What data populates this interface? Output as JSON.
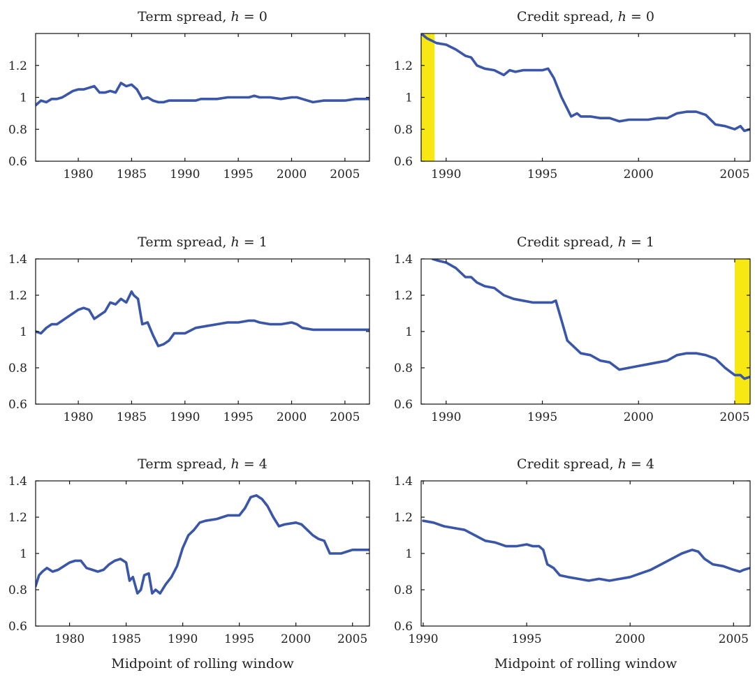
{
  "figure": {
    "line_color": "#3a56a8",
    "highlight_color": "#f7e712",
    "axis_color": "#111111"
  },
  "chart_data": [
    {
      "type": "line",
      "title": "Term spread, h = 0",
      "title_main": "Term spread, ",
      "title_var": "h",
      "title_eq": " = 0",
      "xlabel": "",
      "ylabel": "",
      "xlim": [
        1976,
        2007.3
      ],
      "ylim": [
        0.6,
        1.4
      ],
      "xticks": [
        1980,
        1985,
        1990,
        1995,
        2000,
        2005
      ],
      "yticks": [
        0.6,
        0.8,
        1,
        1.2
      ],
      "ytick_labels": [
        "0.6",
        "0.8",
        "1",
        "1.2"
      ],
      "grid": false,
      "highlight": null,
      "series": [
        {
          "x": [
            1976,
            1976.5,
            1977,
            1977.5,
            1978,
            1978.5,
            1979,
            1979.5,
            1980,
            1980.5,
            1981,
            1981.5,
            1982,
            1982.5,
            1983,
            1983.5,
            1984,
            1984.5,
            1985,
            1985.5,
            1986,
            1986.5,
            1987,
            1987.5,
            1988,
            1988.5,
            1989,
            1990,
            1991,
            1991.5,
            1992,
            1993,
            1994,
            1995,
            1996,
            1996.5,
            1997,
            1998,
            1999,
            2000,
            2000.5,
            2001,
            2002,
            2003,
            2004,
            2005,
            2006,
            2007.3
          ],
          "y": [
            0.95,
            0.98,
            0.97,
            0.99,
            0.99,
            1.0,
            1.02,
            1.04,
            1.05,
            1.05,
            1.06,
            1.07,
            1.03,
            1.03,
            1.04,
            1.03,
            1.09,
            1.07,
            1.08,
            1.05,
            0.99,
            1.0,
            0.98,
            0.97,
            0.97,
            0.98,
            0.98,
            0.98,
            0.98,
            0.99,
            0.99,
            0.99,
            1.0,
            1.0,
            1.0,
            1.01,
            1.0,
            1.0,
            0.99,
            1.0,
            1.0,
            0.99,
            0.97,
            0.98,
            0.98,
            0.98,
            0.99,
            0.99
          ]
        }
      ]
    },
    {
      "type": "line",
      "title": "Credit spread, h = 0",
      "title_main": "Credit spread, ",
      "title_var": "h",
      "title_eq": " = 0",
      "xlabel": "",
      "ylabel": "",
      "xlim": [
        1988.7,
        2005.8
      ],
      "ylim": [
        0.6,
        1.4
      ],
      "xticks": [
        1990,
        1995,
        2000,
        2005
      ],
      "yticks": [
        0.6,
        0.8,
        1,
        1.2
      ],
      "ytick_labels": [
        "0.6",
        "0.8",
        "1",
        "1.2"
      ],
      "grid": false,
      "highlight": [
        1988.7,
        1989.4
      ],
      "series": [
        {
          "x": [
            1988.7,
            1989.0,
            1989.5,
            1990.0,
            1990.5,
            1991.0,
            1991.3,
            1991.6,
            1992.0,
            1992.5,
            1993.0,
            1993.3,
            1993.6,
            1994.0,
            1994.5,
            1995.0,
            1995.3,
            1995.6,
            1996.0,
            1996.5,
            1996.8,
            1997.0,
            1997.5,
            1998.0,
            1998.5,
            1999.0,
            1999.5,
            2000.0,
            2000.5,
            2001.0,
            2001.5,
            2002.0,
            2002.5,
            2003.0,
            2003.5,
            2004.0,
            2004.5,
            2005.0,
            2005.3,
            2005.5,
            2005.8
          ],
          "y": [
            1.4,
            1.37,
            1.34,
            1.33,
            1.3,
            1.26,
            1.25,
            1.2,
            1.18,
            1.17,
            1.14,
            1.17,
            1.16,
            1.17,
            1.17,
            1.17,
            1.18,
            1.12,
            1.0,
            0.88,
            0.9,
            0.88,
            0.88,
            0.87,
            0.87,
            0.85,
            0.86,
            0.86,
            0.86,
            0.87,
            0.87,
            0.9,
            0.91,
            0.91,
            0.89,
            0.83,
            0.82,
            0.8,
            0.82,
            0.79,
            0.8
          ]
        }
      ]
    },
    {
      "type": "line",
      "title": "Term spread, h = 1",
      "title_main": "Term spread, ",
      "title_var": "h",
      "title_eq": " = 1",
      "xlabel": "",
      "ylabel": "",
      "xlim": [
        1976,
        2007.3
      ],
      "ylim": [
        0.6,
        1.4
      ],
      "xticks": [
        1980,
        1985,
        1990,
        1995,
        2000,
        2005
      ],
      "yticks": [
        0.6,
        0.8,
        1,
        1.2,
        1.4
      ],
      "ytick_labels": [
        "0.6",
        "0.8",
        "1",
        "1.2",
        "1.4"
      ],
      "grid": false,
      "highlight": null,
      "series": [
        {
          "x": [
            1976,
            1976.5,
            1977,
            1977.5,
            1978,
            1978.5,
            1979,
            1979.5,
            1980,
            1980.5,
            1981,
            1981.5,
            1982,
            1982.5,
            1983,
            1983.5,
            1984,
            1984.5,
            1985,
            1985.2,
            1985.6,
            1986,
            1986.5,
            1987,
            1987.5,
            1988,
            1988.5,
            1989,
            1990,
            1991,
            1992,
            1993,
            1994,
            1995,
            1996,
            1996.5,
            1997,
            1998,
            1999,
            2000,
            2000.5,
            2001,
            2002,
            2003,
            2004,
            2005,
            2006,
            2007.3
          ],
          "y": [
            1.0,
            0.99,
            1.02,
            1.04,
            1.04,
            1.06,
            1.08,
            1.1,
            1.12,
            1.13,
            1.12,
            1.07,
            1.09,
            1.11,
            1.16,
            1.15,
            1.18,
            1.16,
            1.22,
            1.2,
            1.18,
            1.04,
            1.05,
            0.98,
            0.92,
            0.93,
            0.95,
            0.99,
            0.99,
            1.02,
            1.03,
            1.04,
            1.05,
            1.05,
            1.06,
            1.06,
            1.05,
            1.04,
            1.04,
            1.05,
            1.04,
            1.02,
            1.01,
            1.01,
            1.01,
            1.01,
            1.01,
            1.01
          ]
        }
      ]
    },
    {
      "type": "line",
      "title": "Credit spread, h = 1",
      "title_main": "Credit spread, ",
      "title_var": "h",
      "title_eq": " = 1",
      "xlabel": "",
      "ylabel": "",
      "xlim": [
        1988.7,
        2005.8
      ],
      "ylim": [
        0.6,
        1.4
      ],
      "xticks": [
        1990,
        1995,
        2000,
        2005
      ],
      "yticks": [
        0.6,
        0.8,
        1,
        1.2,
        1.4
      ],
      "ytick_labels": [
        "0.6",
        "0.8",
        "1",
        "1.2",
        "1.4"
      ],
      "grid": false,
      "highlight": [
        2005.0,
        2005.8
      ],
      "series": [
        {
          "x": [
            1989.3,
            1989.6,
            1990.0,
            1990.5,
            1991.0,
            1991.3,
            1991.6,
            1992.0,
            1992.5,
            1993.0,
            1993.5,
            1994.0,
            1994.5,
            1995.0,
            1995.5,
            1995.7,
            1996.0,
            1996.3,
            1996.6,
            1997.0,
            1997.5,
            1998.0,
            1998.5,
            1999.0,
            1999.5,
            2000.0,
            2000.5,
            2001.0,
            2001.5,
            2002.0,
            2002.5,
            2003.0,
            2003.5,
            2004.0,
            2004.5,
            2005.0,
            2005.3,
            2005.5,
            2005.8
          ],
          "y": [
            1.4,
            1.39,
            1.38,
            1.35,
            1.3,
            1.3,
            1.27,
            1.25,
            1.24,
            1.2,
            1.18,
            1.17,
            1.16,
            1.16,
            1.16,
            1.17,
            1.06,
            0.95,
            0.92,
            0.88,
            0.87,
            0.84,
            0.83,
            0.79,
            0.8,
            0.81,
            0.82,
            0.83,
            0.84,
            0.87,
            0.88,
            0.88,
            0.87,
            0.85,
            0.8,
            0.76,
            0.76,
            0.74,
            0.75
          ]
        }
      ]
    },
    {
      "type": "line",
      "title": "Term spread, h = 4",
      "title_main": "Term spread, ",
      "title_var": "h",
      "title_eq": " = 4",
      "xlabel": "Midpoint of rolling window",
      "ylabel": "",
      "xlim": [
        1977,
        2006.5
      ],
      "ylim": [
        0.6,
        1.4
      ],
      "xticks": [
        1980,
        1985,
        1990,
        1995,
        2000,
        2005
      ],
      "yticks": [
        0.6,
        0.8,
        1,
        1.2,
        1.4
      ],
      "ytick_labels": [
        "0.6",
        "0.8",
        "1",
        "1.2",
        "1.4"
      ],
      "grid": false,
      "highlight": null,
      "series": [
        {
          "x": [
            1977,
            1977.3,
            1977.6,
            1978,
            1978.5,
            1979,
            1979.5,
            1980,
            1980.5,
            1981,
            1981.5,
            1982,
            1982.5,
            1983,
            1983.5,
            1984,
            1984.5,
            1985,
            1985.3,
            1985.6,
            1986,
            1986.3,
            1986.6,
            1987,
            1987.3,
            1987.6,
            1988,
            1988.5,
            1989,
            1989.5,
            1990,
            1990.5,
            1991,
            1991.5,
            1992,
            1993,
            1994,
            1995,
            1995.5,
            1996,
            1996.5,
            1997,
            1997.5,
            1998,
            1998.5,
            1999,
            2000,
            2000.5,
            2001,
            2001.5,
            2002,
            2002.5,
            2003,
            2003.5,
            2004,
            2004.5,
            2005,
            2006.5
          ],
          "y": [
            0.82,
            0.88,
            0.9,
            0.92,
            0.9,
            0.91,
            0.93,
            0.95,
            0.96,
            0.96,
            0.92,
            0.91,
            0.9,
            0.91,
            0.94,
            0.96,
            0.97,
            0.95,
            0.85,
            0.87,
            0.78,
            0.8,
            0.88,
            0.89,
            0.78,
            0.8,
            0.78,
            0.83,
            0.87,
            0.93,
            1.03,
            1.1,
            1.13,
            1.17,
            1.18,
            1.19,
            1.21,
            1.21,
            1.25,
            1.31,
            1.32,
            1.3,
            1.26,
            1.2,
            1.15,
            1.16,
            1.17,
            1.16,
            1.13,
            1.1,
            1.08,
            1.07,
            1.0,
            1.0,
            1.0,
            1.01,
            1.02,
            1.02
          ]
        }
      ]
    },
    {
      "type": "line",
      "title": "Credit spread, h = 4",
      "title_main": "Credit spread, ",
      "title_var": "h",
      "title_eq": " = 4",
      "xlabel": "Midpoint of rolling window",
      "ylabel": "",
      "xlim": [
        1989.9,
        2005.8
      ],
      "ylim": [
        0.6,
        1.4
      ],
      "xticks": [
        1990,
        1995,
        2000,
        2005
      ],
      "yticks": [
        0.6,
        0.8,
        1,
        1.2,
        1.4
      ],
      "ytick_labels": [
        "0.6",
        "0.8",
        "1",
        "1.2",
        "1.4"
      ],
      "grid": false,
      "highlight": null,
      "series": [
        {
          "x": [
            1990.0,
            1990.5,
            1991.0,
            1991.5,
            1992.0,
            1992.5,
            1993.0,
            1993.5,
            1994.0,
            1994.5,
            1995.0,
            1995.3,
            1995.6,
            1995.8,
            1996.0,
            1996.3,
            1996.6,
            1997.0,
            1997.5,
            1998.0,
            1998.5,
            1999.0,
            1999.5,
            2000.0,
            2000.5,
            2001.0,
            2001.5,
            2002.0,
            2002.5,
            2003.0,
            2003.3,
            2003.6,
            2004.0,
            2004.5,
            2005.0,
            2005.3,
            2005.5,
            2005.8
          ],
          "y": [
            1.18,
            1.17,
            1.15,
            1.14,
            1.13,
            1.1,
            1.07,
            1.06,
            1.04,
            1.04,
            1.05,
            1.04,
            1.04,
            1.02,
            0.94,
            0.92,
            0.88,
            0.87,
            0.86,
            0.85,
            0.86,
            0.85,
            0.86,
            0.87,
            0.89,
            0.91,
            0.94,
            0.97,
            1.0,
            1.02,
            1.01,
            0.97,
            0.94,
            0.93,
            0.91,
            0.9,
            0.91,
            0.92
          ]
        }
      ]
    }
  ]
}
